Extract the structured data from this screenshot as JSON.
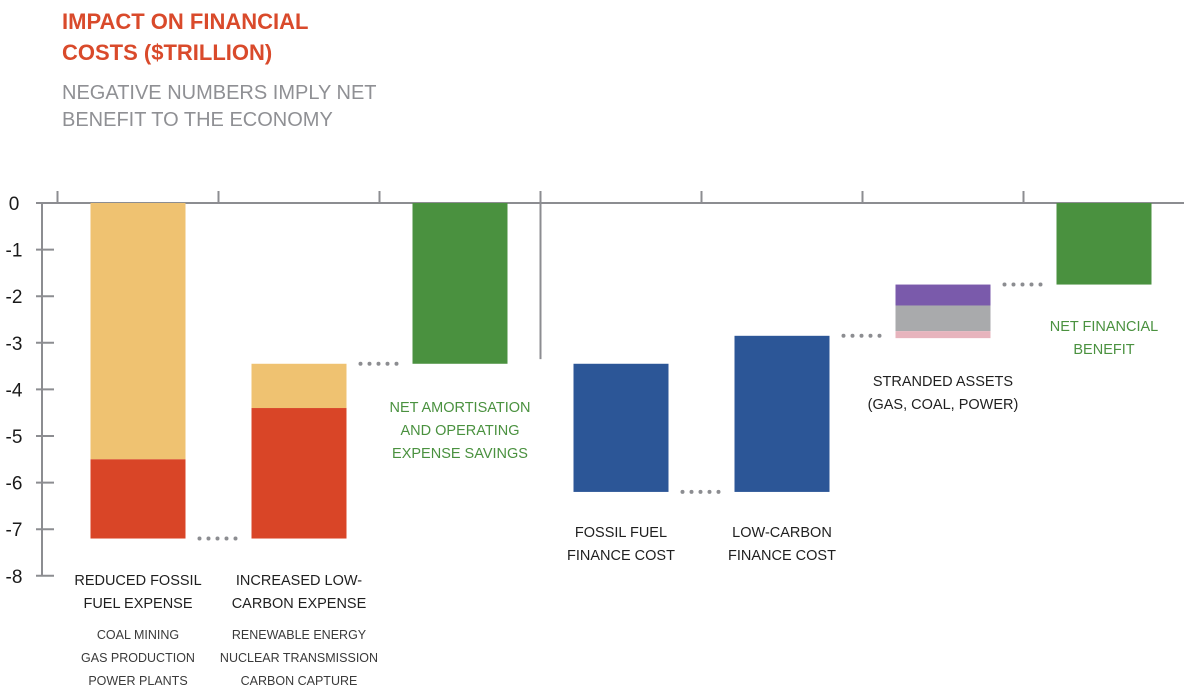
{
  "title_lines": [
    "IMPACT ON FINANCIAL",
    "COSTS ($TRILLION)"
  ],
  "subtitle_lines": [
    "NEGATIVE NUMBERS IMPLY NET",
    "BENEFIT TO THE ECONOMY"
  ],
  "colors": {
    "title": "#d94a2b",
    "subtitle": "#8f9094",
    "axis": "#8c8d91",
    "light_orange": "#efc271",
    "red_orange": "#d94527",
    "green": "#4a913f",
    "blue": "#2c5697",
    "purple": "#7a5aab",
    "gray": "#a9aaac",
    "pink": "#e7b4bd",
    "dots": "#8c8d91"
  },
  "chart_data": {
    "type": "bar",
    "subtype": "waterfall",
    "ylim": [
      -8,
      0
    ],
    "yticks": [
      "0",
      "-1",
      "-2",
      "-3",
      "-4",
      "-5",
      "-6",
      "-7",
      "-8"
    ],
    "bars": [
      {
        "slot": 0,
        "segments": [
          {
            "from": 0,
            "to": -5.5,
            "color": "light_orange"
          },
          {
            "from": -5.5,
            "to": -7.2,
            "color": "red_orange"
          }
        ],
        "label_lines": [
          "REDUCED FOSSIL",
          "FUEL EXPENSE"
        ],
        "sub_lines": [
          "COAL MINING",
          "GAS PRODUCTION",
          "POWER PLANTS"
        ]
      },
      {
        "slot": 1,
        "segments": [
          {
            "from": -3.45,
            "to": -4.4,
            "color": "light_orange"
          },
          {
            "from": -4.4,
            "to": -7.2,
            "color": "red_orange"
          }
        ],
        "label_lines": [
          "INCREASED LOW-",
          "CARBON EXPENSE"
        ],
        "sub_lines": [
          "RENEWABLE ENERGY",
          "NUCLEAR TRANSMISSION",
          "CARBON CAPTURE"
        ]
      },
      {
        "slot": 2,
        "segments": [
          {
            "from": 0,
            "to": -3.45,
            "color": "green"
          }
        ],
        "label_lines": [
          "NET AMORTISATION",
          "AND OPERATING",
          "EXPENSE SAVINGS"
        ],
        "label_color": "green",
        "sub_lines": []
      },
      {
        "slot": 3,
        "segments": [
          {
            "from": -3.45,
            "to": -6.2,
            "color": "blue"
          }
        ],
        "label_lines": [
          "FOSSIL FUEL",
          "FINANCE COST"
        ],
        "sub_lines": []
      },
      {
        "slot": 4,
        "segments": [
          {
            "from": -2.85,
            "to": -6.2,
            "color": "blue"
          }
        ],
        "label_lines": [
          "LOW-CARBON",
          "FINANCE COST"
        ],
        "sub_lines": []
      },
      {
        "slot": 5,
        "segments": [
          {
            "from": -1.75,
            "to": -2.2,
            "color": "purple"
          },
          {
            "from": -2.2,
            "to": -2.75,
            "color": "gray"
          },
          {
            "from": -2.75,
            "to": -2.9,
            "color": "pink"
          }
        ],
        "label_lines": [
          "STRANDED ASSETS",
          "(GAS, COAL, POWER)"
        ],
        "sub_lines": []
      },
      {
        "slot": 6,
        "segments": [
          {
            "from": 0,
            "to": -1.75,
            "color": "green"
          }
        ],
        "label_lines": [
          "NET FINANCIAL",
          "BENEFIT"
        ],
        "label_color": "green",
        "sub_lines": []
      }
    ],
    "connectors": [
      {
        "from_slot": 0,
        "to_slot": 1,
        "value": -7.2
      },
      {
        "from_slot": 1,
        "to_slot": 2,
        "value": -3.45
      },
      {
        "from_slot": 3,
        "to_slot": 4,
        "value": -6.2
      },
      {
        "from_slot": 4,
        "to_slot": 5,
        "value": -2.85
      },
      {
        "from_slot": 5,
        "to_slot": 6,
        "value": -1.75
      }
    ],
    "group_divider_after_slot": 2,
    "grid": false
  }
}
